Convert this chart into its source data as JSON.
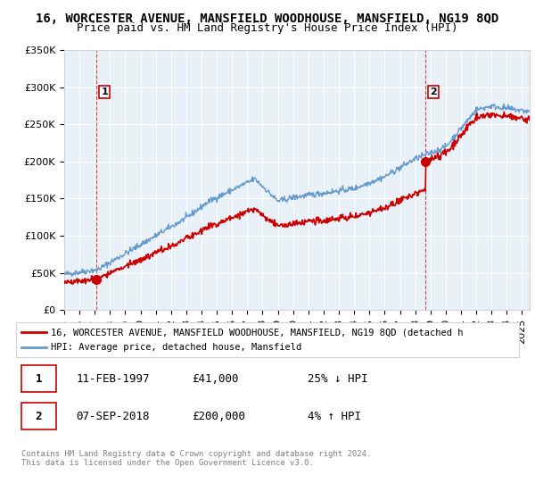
{
  "title1": "16, WORCESTER AVENUE, MANSFIELD WOODHOUSE, MANSFIELD, NG19 8QD",
  "title2": "Price paid vs. HM Land Registry's House Price Index (HPI)",
  "ylim": [
    0,
    350000
  ],
  "yticks": [
    0,
    50000,
    100000,
    150000,
    200000,
    250000,
    300000,
    350000
  ],
  "ytick_labels": [
    "£0",
    "£50K",
    "£100K",
    "£150K",
    "£200K",
    "£250K",
    "£300K",
    "£350K"
  ],
  "xmin_year": 1995.0,
  "xmax_year": 2025.5,
  "xticks": [
    1995,
    1996,
    1997,
    1998,
    1999,
    2000,
    2001,
    2002,
    2003,
    2004,
    2005,
    2006,
    2007,
    2008,
    2009,
    2010,
    2011,
    2012,
    2013,
    2014,
    2015,
    2016,
    2017,
    2018,
    2019,
    2020,
    2021,
    2022,
    2023,
    2024,
    2025
  ],
  "sale1_x": 1997.12,
  "sale1_y": 41000,
  "sale1_label": "1",
  "sale2_x": 2018.68,
  "sale2_y": 200000,
  "sale2_label": "2",
  "red_line_color": "#cc0000",
  "blue_line_color": "#6699cc",
  "bg_color": "#e8f0f8",
  "plot_bg": "#ffffff",
  "legend_label1": "16, WORCESTER AVENUE, MANSFIELD WOODHOUSE, MANSFIELD, NG19 8QD (detached h",
  "legend_label2": "HPI: Average price, detached house, Mansfield",
  "table_row1": [
    "1",
    "11-FEB-1997",
    "£41,000",
    "25% ↓ HPI"
  ],
  "table_row2": [
    "2",
    "07-SEP-2018",
    "£200,000",
    "4% ↑ HPI"
  ],
  "footnote": "Contains HM Land Registry data © Crown copyright and database right 2024.\nThis data is licensed under the Open Government Licence v3.0.",
  "title1_fontsize": 10,
  "title2_fontsize": 9,
  "axis_fontsize": 8
}
